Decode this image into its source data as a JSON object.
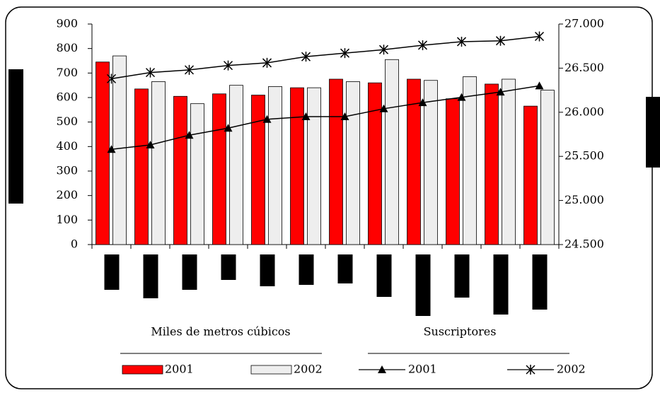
{
  "chart_data": {
    "type": "bar_line",
    "categories": [
      null,
      null,
      null,
      null,
      null,
      null,
      null,
      null,
      null,
      null,
      null,
      null
    ],
    "legend_titles": [
      "Miles de metros cúbicos",
      "Suscriptores"
    ],
    "series": [
      {
        "name": "2001",
        "kind": "bar",
        "color": "#ff0000",
        "values": [
          745,
          635,
          605,
          615,
          610,
          640,
          675,
          660,
          675,
          595,
          655,
          565
        ]
      },
      {
        "name": "2002",
        "kind": "bar",
        "color": "#eeeeee",
        "values": [
          770,
          665,
          575,
          650,
          645,
          640,
          665,
          755,
          670,
          685,
          675,
          630
        ]
      },
      {
        "name": "2001",
        "kind": "line",
        "marker": "triangle",
        "axis": "y2",
        "color": "#000000",
        "values": [
          25580,
          25630,
          25740,
          25820,
          25920,
          25950,
          25950,
          26040,
          26110,
          26170,
          26230,
          26300
        ]
      },
      {
        "name": "2002",
        "kind": "line",
        "marker": "star",
        "axis": "y2",
        "color": "#000000",
        "values": [
          26380,
          26450,
          26480,
          26530,
          26560,
          26630,
          26670,
          26710,
          26760,
          26800,
          26810,
          26860
        ]
      }
    ],
    "ylim": [
      0,
      900
    ],
    "yticks": [
      0,
      100,
      200,
      300,
      400,
      500,
      600,
      700,
      800,
      900
    ],
    "y2lim": [
      24500,
      27000
    ],
    "y2ticks": [
      {
        "value": 24500,
        "label": "24.500"
      },
      {
        "value": 25000,
        "label": "25.000"
      },
      {
        "value": 25500,
        "label": "25.500"
      },
      {
        "value": 26000,
        "label": "26.000"
      },
      {
        "value": 26500,
        "label": "26.500"
      },
      {
        "value": 27000,
        "label": "27.000"
      }
    ],
    "grid": false
  }
}
